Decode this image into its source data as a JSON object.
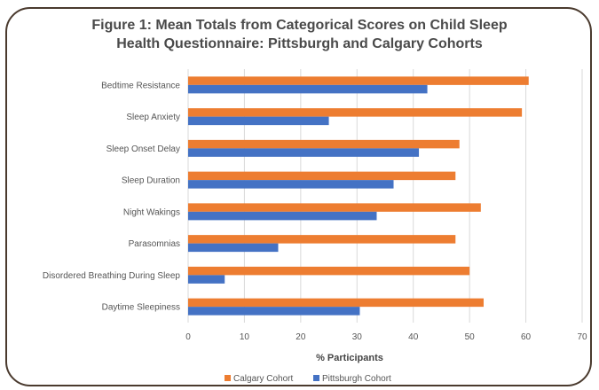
{
  "chart_data": {
    "type": "bar",
    "orientation": "horizontal",
    "title_line1": "Figure 1: Mean Totals from Categorical Scores on Child Sleep",
    "title_line2": "Health Questionnaire: Pittsburgh and Calgary Cohorts",
    "categories": [
      "Bedtime Resistance",
      "Sleep Anxiety",
      "Sleep Onset Delay",
      "Sleep Duration",
      "Night Wakings",
      "Parasomnias",
      "Disordered Breathing During Sleep",
      "Daytime Sleepiness"
    ],
    "series": [
      {
        "name": "Calgary Cohort",
        "color": "#ed7d31",
        "values": [
          60.5,
          59.3,
          48.2,
          47.5,
          52.0,
          47.5,
          50.0,
          52.5
        ]
      },
      {
        "name": "Pittsburgh Cohort",
        "color": "#4472c4",
        "values": [
          42.5,
          25.0,
          41.0,
          36.5,
          33.5,
          16.0,
          6.5,
          30.5
        ]
      }
    ],
    "xlabel": "% Participants",
    "ylabel": "",
    "xlim": [
      0,
      70
    ],
    "xticks": [
      "0",
      "10",
      "20",
      "30",
      "40",
      "50",
      "60",
      "70"
    ],
    "grid": true,
    "legend_position": "bottom"
  }
}
